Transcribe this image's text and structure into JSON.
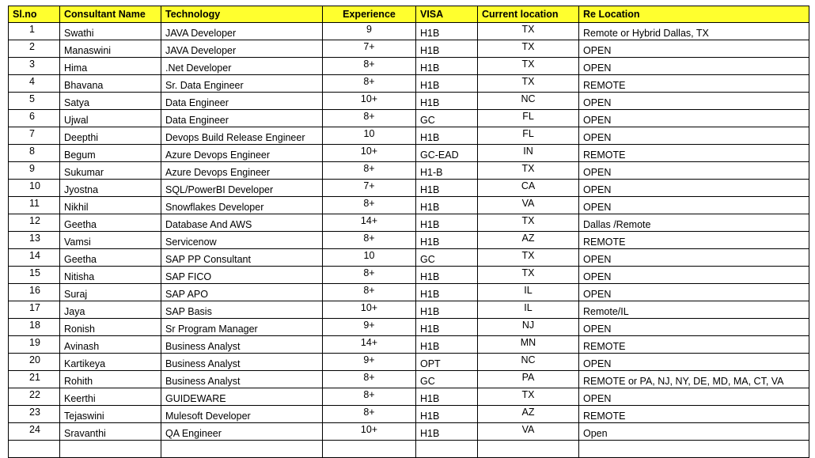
{
  "table": {
    "header": [
      "Sl.no",
      "Consultant Name",
      "Technology",
      "Experience",
      "VISA",
      "Current location",
      "Re Location"
    ],
    "rows": [
      [
        "1",
        "Swathi",
        "JAVA Developer",
        "9",
        "H1B",
        "TX",
        "Remote or Hybrid Dallas, TX"
      ],
      [
        "2",
        "Manaswini",
        "JAVA Developer",
        "7+",
        "H1B",
        "TX",
        "OPEN"
      ],
      [
        "3",
        "Hima",
        ".Net Developer",
        "8+",
        "H1B",
        "TX",
        "OPEN"
      ],
      [
        "4",
        "Bhavana",
        "Sr. Data Engineer",
        "8+",
        "H1B",
        "TX",
        "REMOTE"
      ],
      [
        "5",
        "Satya",
        "Data Engineer",
        "10+",
        "H1B",
        "NC",
        "OPEN"
      ],
      [
        "6",
        "Ujwal",
        "Data Engineer",
        "8+",
        "GC",
        "FL",
        "OPEN"
      ],
      [
        "7",
        "Deepthi",
        "Devops Build Release Engineer",
        "10",
        "H1B",
        "FL",
        "OPEN"
      ],
      [
        "8",
        "Begum",
        "Azure Devops Engineer",
        "10+",
        "GC-EAD",
        "IN",
        "REMOTE"
      ],
      [
        "9",
        "Sukumar",
        "Azure Devops Engineer",
        "8+",
        "H1-B",
        "TX",
        "OPEN"
      ],
      [
        "10",
        "Jyostna",
        "SQL/PowerBI Developer",
        "7+",
        "H1B",
        "CA",
        "OPEN"
      ],
      [
        "11",
        "Nikhil",
        "Snowflakes Developer",
        "8+",
        "H1B",
        "VA",
        "OPEN"
      ],
      [
        "12",
        "Geetha",
        "Database And AWS",
        "14+",
        "H1B",
        "TX",
        "Dallas /Remote"
      ],
      [
        "13",
        "Vamsi",
        "Servicenow",
        "8+",
        "H1B",
        "AZ",
        "REMOTE"
      ],
      [
        "14",
        "Geetha",
        "SAP PP Consultant",
        "10",
        "GC",
        "TX",
        "OPEN"
      ],
      [
        "15",
        "Nitisha",
        "SAP FICO",
        "8+",
        "H1B",
        "TX",
        "OPEN"
      ],
      [
        "16",
        "Suraj",
        "SAP APO",
        "8+",
        "H1B",
        "IL",
        "OPEN"
      ],
      [
        "17",
        "Jaya",
        "SAP Basis",
        "10+",
        "H1B",
        "IL",
        "Remote/IL"
      ],
      [
        "18",
        "Ronish",
        "Sr Program Manager",
        "9+",
        "H1B",
        "NJ",
        "OPEN"
      ],
      [
        "19",
        "Avinash",
        "Business Analyst",
        "14+",
        "H1B",
        "MN",
        "REMOTE"
      ],
      [
        "20",
        "Kartikeya",
        "Business Analyst",
        "9+",
        "OPT",
        "NC",
        "OPEN"
      ],
      [
        "21",
        "Rohith",
        "Business Analyst",
        "8+",
        "GC",
        "PA",
        "REMOTE or PA, NJ, NY, DE, MD, MA, CT, VA"
      ],
      [
        "22",
        "Keerthi",
        "GUIDEWARE",
        "8+",
        "H1B",
        "TX",
        "OPEN"
      ],
      [
        "23",
        "Tejaswini",
        "Mulesoft Developer",
        "8+",
        "H1B",
        "AZ",
        "REMOTE"
      ],
      [
        "24",
        "Sravanthi",
        "QA Engineer",
        "10+",
        "H1B",
        "VA",
        "Open"
      ]
    ]
  }
}
